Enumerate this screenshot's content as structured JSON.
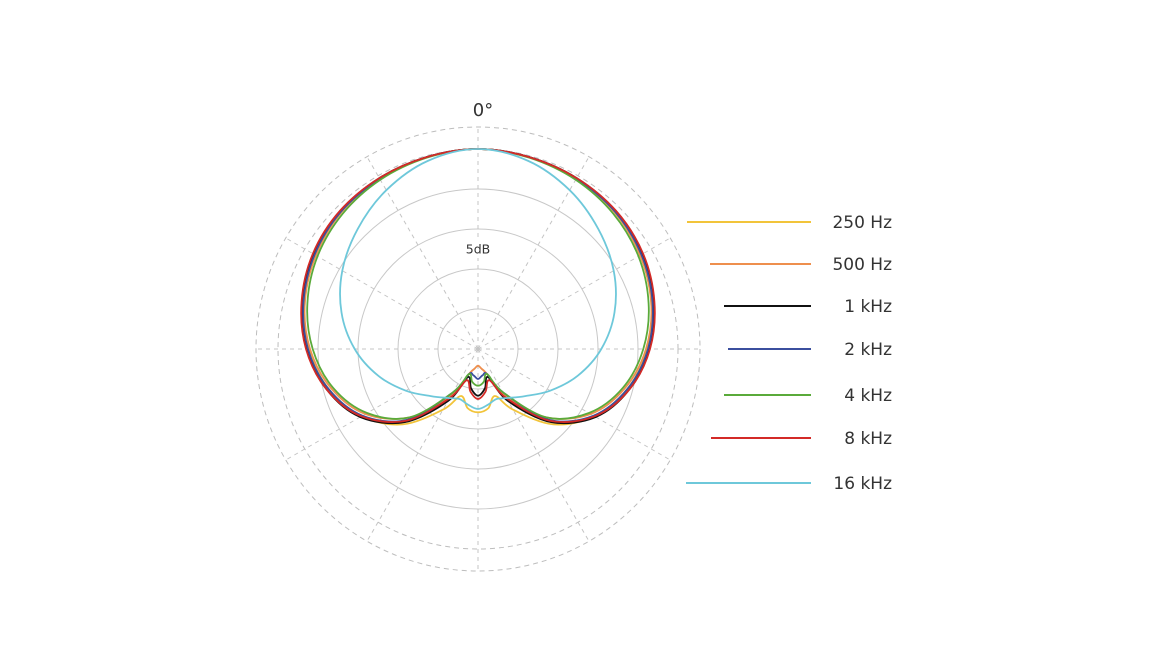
{
  "chart_data": {
    "type": "polar",
    "angle_label": "0°",
    "ring_label": "5dB",
    "radial_unit": "dB",
    "rlim": [
      -30,
      0
    ],
    "grid": true,
    "legend_position": "right",
    "series": [
      {
        "name": "250 Hz",
        "color": "#f2c43a",
        "angles": [
          0,
          15,
          30,
          45,
          60,
          75,
          90,
          105,
          120,
          135,
          150,
          160,
          170,
          180,
          190,
          200,
          210,
          225,
          240,
          255,
          270,
          285,
          300,
          315,
          330,
          345,
          360
        ],
        "values": [
          0,
          -0.2,
          -0.5,
          -1.0,
          -1.9,
          -3.1,
          -4.6,
          -6.8,
          -9.8,
          -14.0,
          -19.5,
          -22.5,
          -21.0,
          -20.5,
          -21.0,
          -22.5,
          -19.5,
          -14.0,
          -9.8,
          -6.8,
          -4.6,
          -3.1,
          -1.9,
          -1.0,
          -0.5,
          -0.2,
          0
        ]
      },
      {
        "name": "500 Hz",
        "color": "#ee8f4e",
        "angles": [
          0,
          15,
          30,
          45,
          60,
          75,
          90,
          105,
          120,
          135,
          150,
          160,
          170,
          180,
          190,
          200,
          210,
          225,
          240,
          255,
          270,
          285,
          300,
          315,
          330,
          345,
          360
        ],
        "values": [
          0,
          -0.2,
          -0.5,
          -1.0,
          -1.9,
          -3.1,
          -4.8,
          -7.2,
          -10.5,
          -15.5,
          -22.0,
          -26.0,
          -27.0,
          -27.5,
          -27.0,
          -26.0,
          -22.0,
          -15.5,
          -10.5,
          -7.2,
          -4.8,
          -3.1,
          -1.9,
          -1.0,
          -0.5,
          -0.2,
          0
        ]
      },
      {
        "name": "1 kHz",
        "color": "#111111",
        "angles": [
          0,
          15,
          30,
          45,
          60,
          75,
          90,
          105,
          120,
          135,
          150,
          160,
          170,
          180,
          190,
          200,
          210,
          225,
          240,
          255,
          270,
          285,
          300,
          315,
          330,
          345,
          360
        ],
        "values": [
          0,
          -0.2,
          -0.4,
          -0.8,
          -1.6,
          -2.8,
          -4.3,
          -6.5,
          -9.6,
          -14.5,
          -21.0,
          -25.5,
          -24.0,
          -23.0,
          -24.0,
          -25.5,
          -21.0,
          -14.5,
          -9.6,
          -6.5,
          -4.3,
          -2.8,
          -1.6,
          -0.8,
          -0.4,
          -0.2,
          0
        ]
      },
      {
        "name": "2 kHz",
        "color": "#3b4f9e",
        "angles": [
          0,
          15,
          30,
          45,
          60,
          75,
          90,
          105,
          120,
          135,
          150,
          160,
          170,
          180,
          190,
          200,
          210,
          225,
          240,
          255,
          270,
          285,
          300,
          315,
          330,
          345,
          360
        ],
        "values": [
          0,
          -0.2,
          -0.5,
          -0.9,
          -1.7,
          -2.9,
          -4.5,
          -6.8,
          -10.0,
          -15.0,
          -22.5,
          -26.0,
          -26.0,
          -25.5,
          -26.0,
          -26.0,
          -22.5,
          -15.0,
          -10.0,
          -6.8,
          -4.5,
          -2.9,
          -1.7,
          -0.9,
          -0.5,
          -0.2,
          0
        ]
      },
      {
        "name": "4 kHz",
        "color": "#5aaa3a",
        "angles": [
          0,
          15,
          30,
          45,
          60,
          75,
          90,
          105,
          120,
          135,
          150,
          160,
          170,
          180,
          190,
          200,
          210,
          225,
          240,
          255,
          270,
          285,
          300,
          315,
          330,
          345,
          360
        ],
        "values": [
          0,
          -0.3,
          -0.7,
          -1.3,
          -2.2,
          -3.5,
          -5.2,
          -7.5,
          -10.8,
          -15.5,
          -22.5,
          -26.0,
          -25.0,
          -24.5,
          -25.0,
          -26.0,
          -22.5,
          -15.5,
          -10.8,
          -7.5,
          -5.2,
          -3.5,
          -2.2,
          -1.3,
          -0.7,
          -0.3,
          0
        ]
      },
      {
        "name": "8 kHz",
        "color": "#d32a27",
        "angles": [
          0,
          15,
          30,
          45,
          60,
          75,
          90,
          105,
          120,
          135,
          150,
          160,
          170,
          180,
          190,
          200,
          210,
          225,
          240,
          255,
          270,
          285,
          300,
          315,
          330,
          345,
          360
        ],
        "values": [
          0,
          -0.2,
          -0.4,
          -0.7,
          -1.4,
          -2.6,
          -4.2,
          -6.5,
          -9.8,
          -14.8,
          -21.5,
          -25.0,
          -23.5,
          -22.5,
          -23.5,
          -25.0,
          -21.5,
          -14.8,
          -9.8,
          -6.5,
          -4.2,
          -2.6,
          -1.4,
          -0.7,
          -0.4,
          -0.2,
          0
        ]
      },
      {
        "name": "16 kHz",
        "color": "#6ec8da",
        "angles": [
          0,
          15,
          30,
          45,
          60,
          75,
          90,
          105,
          120,
          135,
          150,
          160,
          170,
          180,
          190,
          200,
          210,
          225,
          240,
          255,
          270,
          285,
          300,
          315,
          330,
          345,
          360
        ],
        "values": [
          0,
          -0.8,
          -2.5,
          -4.5,
          -6.5,
          -8.8,
          -11.5,
          -14.5,
          -17.5,
          -20.0,
          -21.5,
          -22.0,
          -21.5,
          -21.0,
          -21.5,
          -22.0,
          -21.5,
          -20.0,
          -17.5,
          -14.5,
          -11.5,
          -8.8,
          -6.5,
          -4.5,
          -2.5,
          -0.8,
          0
        ]
      }
    ]
  }
}
